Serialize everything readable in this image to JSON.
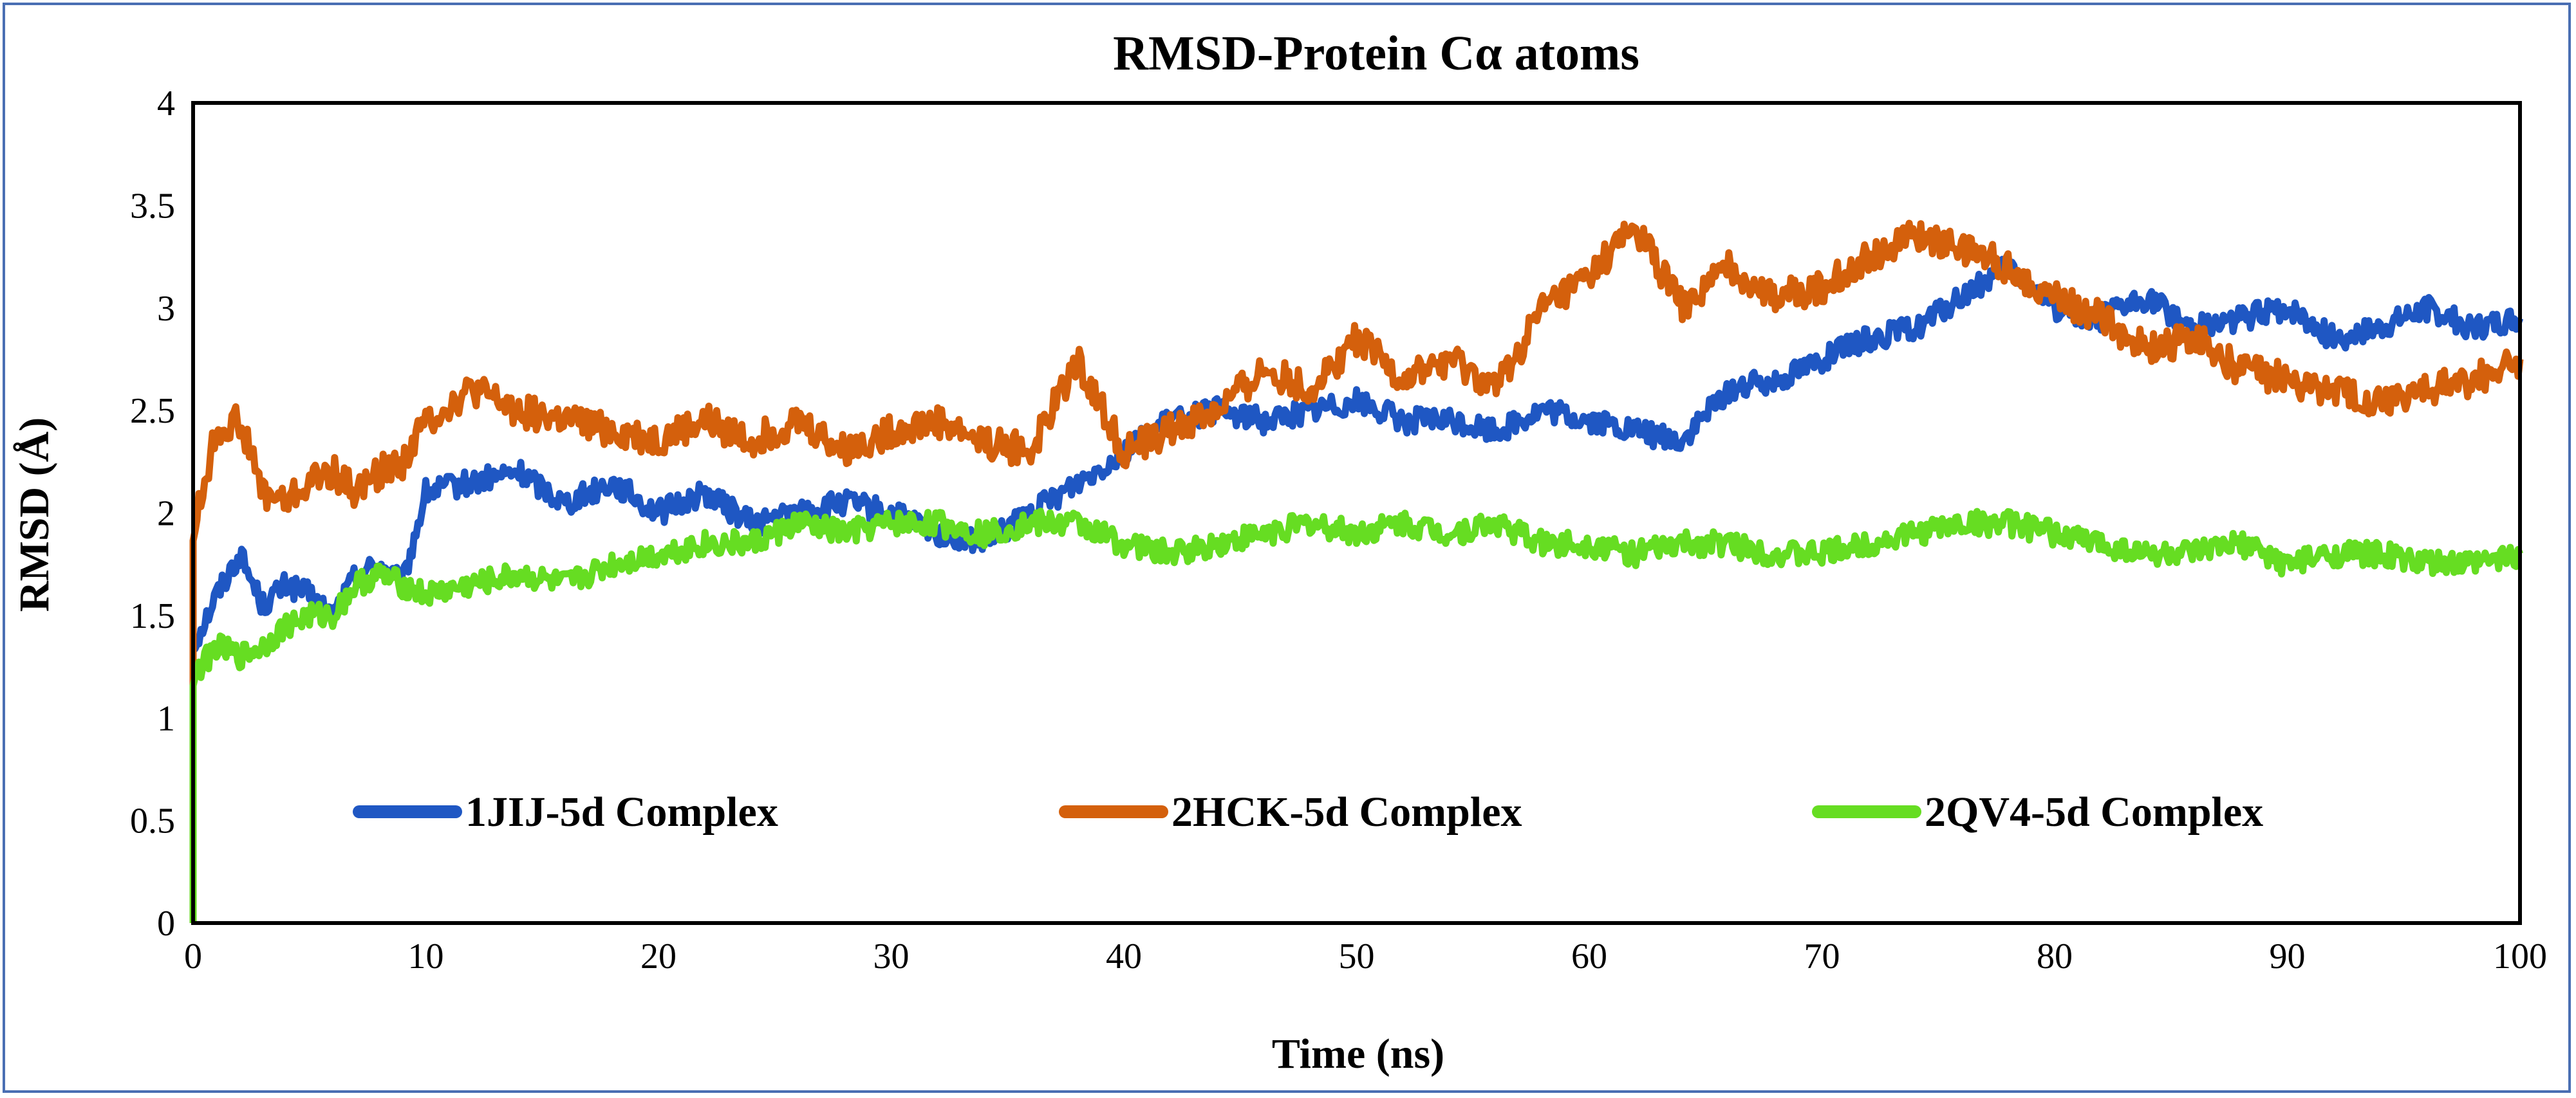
{
  "chart_data": {
    "type": "line",
    "title": "RMSD-Protein Cα atoms",
    "xlabel": "Time (ns)",
    "ylabel": "RMSD (Å)",
    "xlim": [
      0,
      100
    ],
    "ylim": [
      0,
      4
    ],
    "x_ticks": [
      "0",
      "10",
      "20",
      "30",
      "40",
      "50",
      "60",
      "70",
      "80",
      "90",
      "100"
    ],
    "y_ticks": [
      "0",
      "0.5",
      "1",
      "1.5",
      "2",
      "2.5",
      "3",
      "3.5",
      "4"
    ],
    "grid": false,
    "legend_position": "lower-center inside",
    "x": [
      0,
      1,
      2,
      3,
      4,
      5,
      6,
      7,
      8,
      9,
      10,
      12,
      14,
      16,
      18,
      20,
      22,
      24,
      26,
      28,
      30,
      32,
      34,
      36,
      38,
      40,
      42,
      44,
      46,
      48,
      50,
      52,
      54,
      56,
      58,
      60,
      62,
      64,
      66,
      68,
      70,
      72,
      74,
      76,
      78,
      80,
      82,
      84,
      86,
      88,
      90,
      92,
      94,
      96,
      98,
      100
    ],
    "series": [
      {
        "name": "1JIJ-5d Complex",
        "color": "#1f57c3",
        "values": [
          1.35,
          1.6,
          1.8,
          1.55,
          1.65,
          1.6,
          1.5,
          1.7,
          1.75,
          1.65,
          2.1,
          2.15,
          2.2,
          2.05,
          2.15,
          2.0,
          2.1,
          1.95,
          2.0,
          2.05,
          2.0,
          1.9,
          1.85,
          2.0,
          2.15,
          2.3,
          2.45,
          2.5,
          2.45,
          2.5,
          2.55,
          2.45,
          2.45,
          2.4,
          2.5,
          2.45,
          2.4,
          2.35,
          2.6,
          2.65,
          2.75,
          2.85,
          2.9,
          3.05,
          3.2,
          3.0,
          2.95,
          3.05,
          2.9,
          2.95,
          3.0,
          2.85,
          2.9,
          3.0,
          2.9,
          2.95
        ]
      },
      {
        "name": "2HCK-5d Complex",
        "color": "#d4600c",
        "values": [
          1.9,
          2.4,
          2.45,
          2.1,
          2.05,
          2.15,
          2.2,
          2.1,
          2.2,
          2.25,
          2.45,
          2.6,
          2.5,
          2.45,
          2.4,
          2.35,
          2.45,
          2.35,
          2.45,
          2.3,
          2.4,
          2.45,
          2.35,
          2.3,
          2.75,
          2.3,
          2.4,
          2.5,
          2.7,
          2.6,
          2.85,
          2.65,
          2.75,
          2.6,
          3.0,
          3.15,
          3.4,
          3.0,
          3.2,
          3.05,
          3.1,
          3.25,
          3.35,
          3.3,
          3.2,
          3.05,
          2.95,
          2.8,
          2.85,
          2.7,
          2.65,
          2.6,
          2.55,
          2.6,
          2.65,
          2.75
        ]
      },
      {
        "name": "2QV4-5d Complex",
        "color": "#66dd22",
        "values": [
          1.2,
          1.35,
          1.3,
          1.35,
          1.45,
          1.5,
          1.5,
          1.65,
          1.7,
          1.65,
          1.6,
          1.65,
          1.7,
          1.65,
          1.75,
          1.8,
          1.85,
          1.85,
          1.95,
          1.9,
          1.95,
          1.95,
          1.9,
          1.95,
          1.95,
          1.85,
          1.8,
          1.85,
          1.9,
          1.95,
          1.9,
          1.95,
          1.9,
          1.95,
          1.85,
          1.85,
          1.8,
          1.85,
          1.85,
          1.8,
          1.8,
          1.85,
          1.9,
          1.95,
          1.95,
          1.9,
          1.85,
          1.8,
          1.8,
          1.85,
          1.75,
          1.8,
          1.8,
          1.75,
          1.75,
          1.8
        ]
      }
    ]
  }
}
